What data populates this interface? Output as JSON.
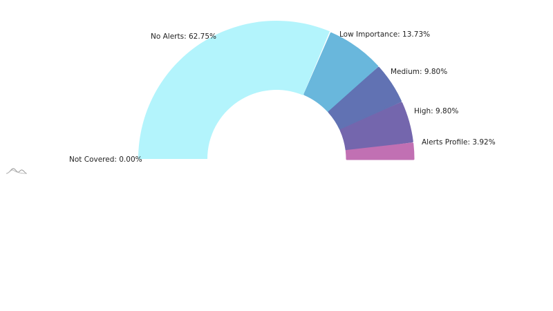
{
  "chart_data": {
    "type": "pie",
    "variant": "semi-donut",
    "title": "",
    "center": [
      400,
      230
    ],
    "outer_radius": 200,
    "inner_radius": 100,
    "start_angle_deg": 180,
    "end_angle_deg": 360,
    "slices": [
      {
        "name": "Not Covered",
        "value": 0.0,
        "label": "Not Covered: 0.00%",
        "color": "#B3F4FC"
      },
      {
        "name": "No Alerts",
        "value": 62.75,
        "label": "No Alerts: 62.75%",
        "color": "#B3F4FC"
      },
      {
        "name": "Low Importance",
        "value": 13.73,
        "label": "Low Importance: 13.73%",
        "color": "#69B7DC"
      },
      {
        "name": "Medium",
        "value": 9.8,
        "label": "Medium: 9.80%",
        "color": "#6172B3"
      },
      {
        "name": "High",
        "value": 9.8,
        "label": "High: 9.80%",
        "color": "#7466AD"
      },
      {
        "name": "Alerts Profile",
        "value": 3.92,
        "label": "Alerts Profile: 3.92%",
        "color": "#C170B3"
      }
    ],
    "legend": {
      "visible": false
    }
  },
  "labels": {
    "not_covered": "Not Covered: 0.00%",
    "no_alerts": "No Alerts: 62.75%",
    "low_importance": "Low Importance: 13.73%",
    "medium": "Medium: 9.80%",
    "high": "High: 9.80%",
    "alerts_profile": "Alerts Profile: 3.92%"
  },
  "icons": {
    "chart_logo": "amcharts-logo-icon"
  }
}
